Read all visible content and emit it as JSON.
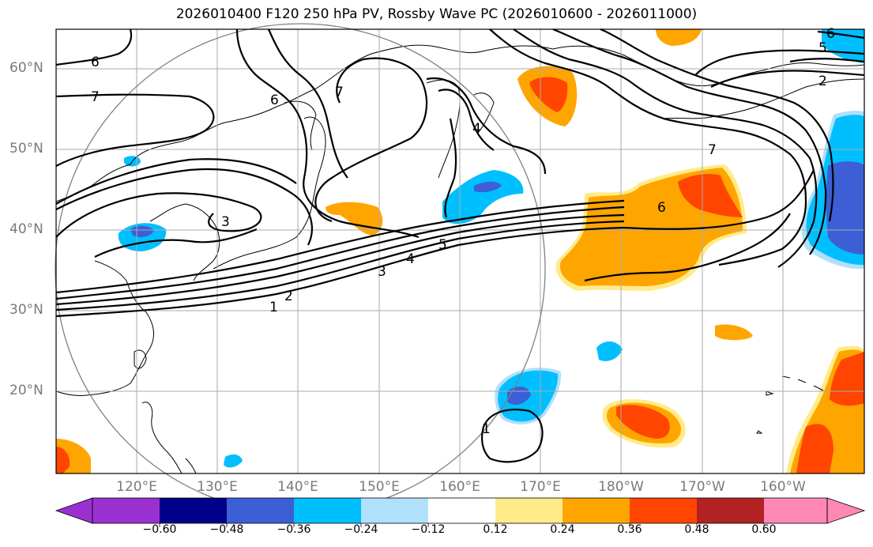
{
  "title": "2026010400 F120 250 hPa PV, Rossby Wave PC (2026010600 - 2026011000)",
  "lat_labels": [
    "60°N",
    "50°N",
    "40°N",
    "30°N",
    "20°N"
  ],
  "lon_labels": [
    "120°E",
    "130°E",
    "140°E",
    "150°E",
    "160°E",
    "170°E",
    "180°W",
    "170°W",
    "160°W"
  ],
  "colorbar": {
    "colors": [
      "#9b30d0",
      "#00008b",
      "#3c5fd6",
      "#00bfff",
      "#b0e0fa",
      "#ffffff",
      "#ffeb8a",
      "#ffa500",
      "#ff4500",
      "#b22222",
      "#ff89b4"
    ],
    "tick_labels": [
      "−0.60",
      "−0.48",
      "−0.36",
      "−0.24",
      "−0.12",
      "0.12",
      "0.24",
      "0.36",
      "0.48",
      "0.60"
    ]
  },
  "contour_labels": [
    "6",
    "7",
    "6",
    "7",
    "4",
    "3",
    "1",
    "2",
    "3",
    "4",
    "5",
    "6",
    "7",
    "2",
    "5",
    "6",
    "1"
  ],
  "icons": {
    "map-frame": "map-frame-icon",
    "colorbar": "colorbar-icon"
  }
}
